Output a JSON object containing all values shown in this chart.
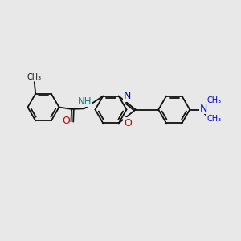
{
  "bg_color": "#e8e8e8",
  "bond_color": "#111111",
  "bw": 1.3,
  "r": 0.65,
  "colors": {
    "N": "#0000cc",
    "O": "#cc0000",
    "NH": "#008888",
    "C": "#111111",
    "Me": "#111111"
  },
  "xlim": [
    0,
    10
  ],
  "ylim": [
    0,
    10
  ]
}
